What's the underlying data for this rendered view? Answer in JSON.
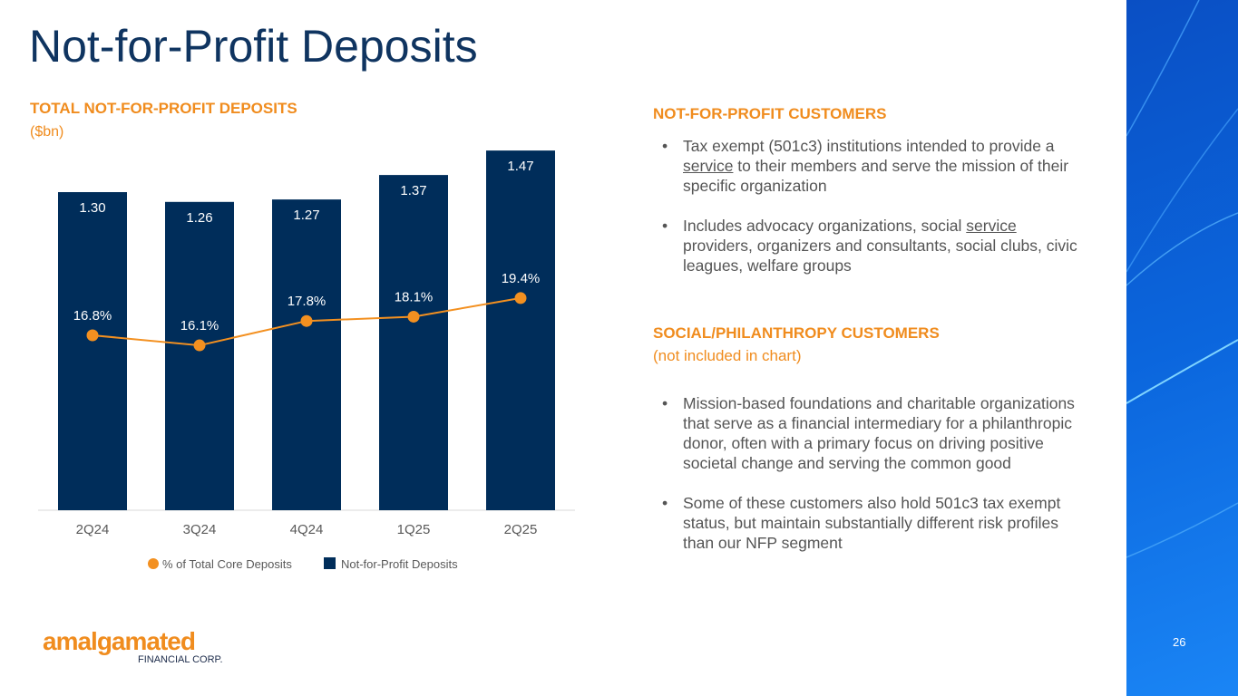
{
  "title": "Not-for-Profit Deposits",
  "chart_data": {
    "type": "bar",
    "title": "TOTAL NOT-FOR-PROFIT DEPOSITS",
    "subtitle": "($bn)",
    "categories": [
      "2Q24",
      "3Q24",
      "4Q24",
      "1Q25",
      "2Q25"
    ],
    "series": [
      {
        "name": "Not-for-Profit Deposits",
        "type": "bar",
        "values": [
          1.3,
          1.26,
          1.27,
          1.37,
          1.47
        ],
        "labels": [
          "1.30",
          "1.26",
          "1.27",
          "1.37",
          "1.47"
        ],
        "color": "#002d5a"
      },
      {
        "name": "% of Total Core Deposits",
        "type": "line",
        "values": [
          16.8,
          16.1,
          17.8,
          18.1,
          19.4
        ],
        "labels": [
          "16.8%",
          "16.1%",
          "17.8%",
          "18.1%",
          "19.4%"
        ],
        "color": "#f39020"
      }
    ],
    "legend": [
      "% of Total Core Deposits",
      "Not-for-Profit Deposits"
    ],
    "legend_position": "bottom"
  },
  "right": {
    "h1": "NOT-FOR-PROFIT CUSTOMERS",
    "b1": [
      "Tax exempt (501c3) institutions intended to provide a service to their members and serve the mission of their specific organization",
      "Includes advocacy organizations, social service providers, organizers and consultants, social clubs, civic leagues, welfare groups"
    ],
    "h2": "SOCIAL/PHILANTHROPY CUSTOMERS",
    "h2sub": "(not included in chart)",
    "b2": [
      "Mission-based foundations and charitable organizations that serve as a financial intermediary for a philanthropic donor, often with a primary focus on driving positive societal change and serving the common good",
      "Some of these customers also hold 501c3 tax exempt status, but maintain substantially different risk profiles than our NFP segment"
    ]
  },
  "logo": {
    "name": "amalgamated",
    "tag": "FINANCIAL CORP."
  },
  "page_number": "26"
}
